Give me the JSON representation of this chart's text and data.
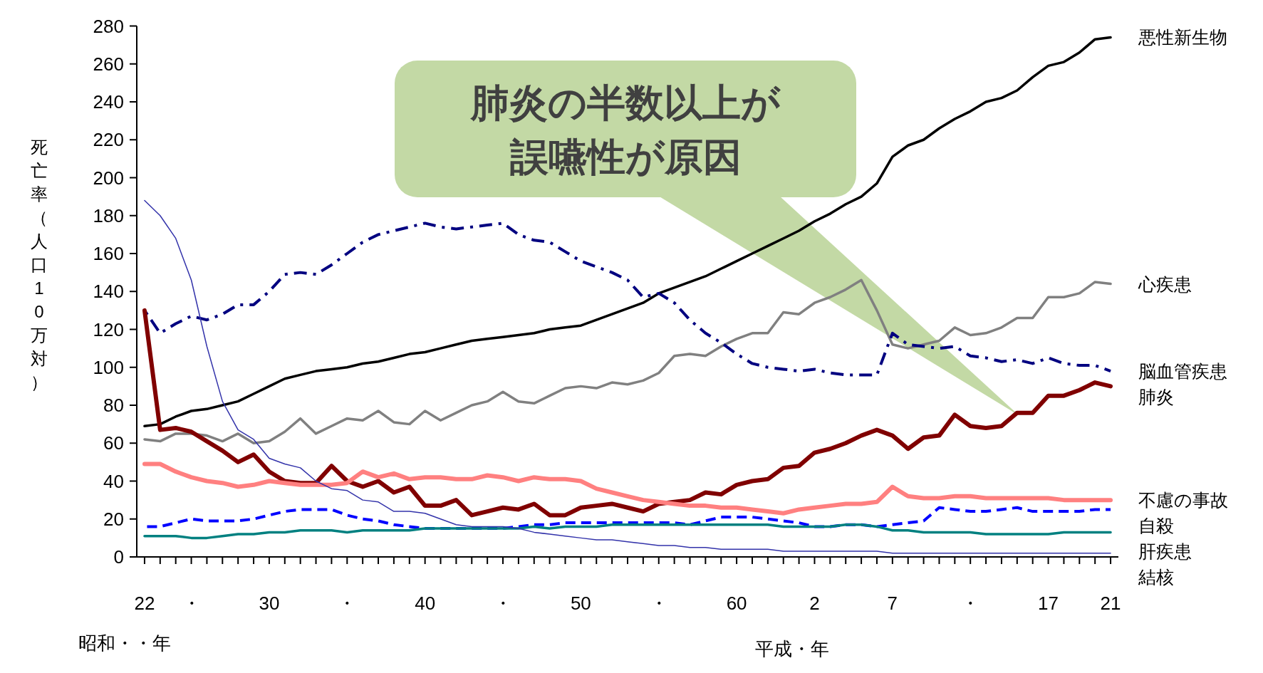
{
  "chart_data": {
    "type": "line",
    "ylabel": "死亡率（人口10万対）",
    "xlabel": "昭和・・年",
    "annotations": [
      "肺炎の半数以上が誤嚥性が原因",
      "平成・年"
    ],
    "ylim": [
      0,
      280
    ],
    "yticks": [
      0,
      20,
      40,
      60,
      80,
      100,
      120,
      140,
      160,
      180,
      200,
      220,
      240,
      260,
      280
    ],
    "categories": [
      "22",
      null,
      null,
      "・",
      null,
      null,
      null,
      null,
      "30",
      null,
      null,
      null,
      null,
      "・",
      null,
      null,
      null,
      null,
      "40",
      null,
      null,
      null,
      null,
      "・",
      null,
      null,
      null,
      null,
      "50",
      null,
      null,
      null,
      null,
      "・",
      null,
      null,
      null,
      null,
      "60",
      null,
      null,
      null,
      null,
      "2",
      null,
      null,
      null,
      null,
      "7",
      null,
      null,
      null,
      null,
      "・",
      null,
      null,
      null,
      null,
      "17",
      null,
      null,
      null,
      "21"
    ],
    "grid": false,
    "legend": false,
    "series": [
      {
        "name": "悪性新生物",
        "color": "#000000",
        "line_style": "solid",
        "values": [
          69,
          70,
          74,
          77,
          78,
          80,
          82,
          86,
          90,
          94,
          96,
          98,
          99,
          100,
          102,
          103,
          105,
          107,
          108,
          110,
          112,
          114,
          115,
          116,
          117,
          118,
          120,
          121,
          122,
          125,
          128,
          131,
          134,
          139,
          142,
          145,
          148,
          152,
          156,
          160,
          164,
          168,
          172,
          177,
          181,
          186,
          190,
          197,
          211,
          217,
          220,
          226,
          231,
          235,
          240,
          242,
          246,
          253,
          259,
          261,
          266,
          273,
          274
        ]
      },
      {
        "name": "心疾患",
        "color": "#808080",
        "line_style": "solid",
        "values": [
          62,
          61,
          65,
          65,
          64,
          61,
          65,
          60,
          61,
          66,
          73,
          65,
          69,
          73,
          72,
          77,
          71,
          70,
          77,
          72,
          76,
          80,
          82,
          87,
          82,
          81,
          85,
          89,
          90,
          89,
          92,
          91,
          93,
          97,
          106,
          107,
          106,
          111,
          115,
          118,
          118,
          129,
          128,
          134,
          137,
          141,
          146,
          130,
          112,
          110,
          112,
          114,
          121,
          117,
          118,
          121,
          126,
          126,
          137,
          137,
          139,
          145,
          144
        ]
      },
      {
        "name": "脳血管疾患",
        "color": "#000080",
        "line_style": "dashdot",
        "values": [
          130,
          118,
          123,
          127,
          125,
          128,
          133,
          133,
          140,
          149,
          150,
          149,
          154,
          160,
          166,
          170,
          172,
          174,
          176,
          174,
          173,
          174,
          175,
          176,
          170,
          167,
          166,
          161,
          156,
          153,
          150,
          146,
          137,
          139,
          134,
          125,
          118,
          113,
          107,
          102,
          100,
          99,
          98,
          99,
          97,
          96,
          96,
          96,
          118,
          112,
          111,
          110,
          111,
          106,
          105,
          103,
          104,
          102,
          105,
          102,
          101,
          101,
          98
        ]
      },
      {
        "name": "肺炎",
        "color": "#800000",
        "line_style": "solid",
        "values": [
          130,
          67,
          68,
          66,
          61,
          56,
          50,
          54,
          45,
          40,
          39,
          39,
          48,
          40,
          37,
          40,
          34,
          37,
          27,
          27,
          30,
          22,
          24,
          26,
          25,
          28,
          22,
          22,
          26,
          27,
          28,
          26,
          24,
          28,
          29,
          30,
          34,
          33,
          38,
          40,
          41,
          47,
          48,
          55,
          57,
          60,
          64,
          67,
          64,
          57,
          63,
          64,
          75,
          69,
          68,
          69,
          76,
          76,
          85,
          85,
          88,
          92,
          90
        ]
      },
      {
        "name": "不慮の事故",
        "color": "#ff8080",
        "line_style": "solid",
        "values": [
          49,
          49,
          45,
          42,
          40,
          39,
          37,
          38,
          40,
          39,
          38,
          38,
          38,
          39,
          45,
          42,
          44,
          41,
          42,
          42,
          41,
          41,
          43,
          42,
          40,
          42,
          41,
          41,
          40,
          36,
          34,
          32,
          30,
          29,
          28,
          27,
          27,
          26,
          26,
          25,
          24,
          23,
          25,
          26,
          27,
          28,
          28,
          29,
          37,
          32,
          31,
          31,
          32,
          32,
          31,
          31,
          31,
          31,
          31,
          30,
          30,
          30,
          30
        ]
      },
      {
        "name": "自殺",
        "color": "#0000ff",
        "line_style": "dashed",
        "values": [
          16,
          16,
          18,
          20,
          19,
          19,
          19,
          20,
          22,
          24,
          25,
          25,
          25,
          22,
          20,
          19,
          17,
          16,
          15,
          15,
          15,
          15,
          15,
          15,
          16,
          17,
          17,
          18,
          18,
          18,
          18,
          18,
          18,
          18,
          18,
          17,
          19,
          21,
          21,
          21,
          20,
          19,
          18,
          16,
          16,
          17,
          17,
          16,
          17,
          18,
          19,
          26,
          25,
          24,
          24,
          25,
          26,
          24,
          24,
          24,
          24,
          25,
          25
        ]
      },
      {
        "name": "肝疾患",
        "color": "#008080",
        "line_style": "solid",
        "values": [
          11,
          11,
          11,
          10,
          10,
          11,
          12,
          12,
          13,
          13,
          14,
          14,
          14,
          13,
          14,
          14,
          14,
          14,
          15,
          15,
          15,
          15,
          15,
          15,
          15,
          16,
          15,
          16,
          16,
          16,
          17,
          17,
          17,
          17,
          17,
          17,
          17,
          17,
          17,
          17,
          17,
          16,
          16,
          16,
          16,
          17,
          17,
          16,
          14,
          14,
          13,
          13,
          13,
          13,
          12,
          12,
          12,
          12,
          12,
          13,
          13,
          13,
          13
        ]
      },
      {
        "name": "結核",
        "color": "#3333aa",
        "line_style": "solid",
        "values": [
          188,
          180,
          168,
          146,
          111,
          82,
          67,
          62,
          52,
          49,
          47,
          40,
          36,
          35,
          30,
          29,
          24,
          24,
          23,
          20,
          17,
          16,
          16,
          16,
          15,
          13,
          12,
          11,
          10,
          9,
          9,
          8,
          7,
          6,
          6,
          5,
          5,
          4,
          4,
          4,
          4,
          3,
          3,
          3,
          3,
          3,
          3,
          3,
          2,
          2,
          2,
          2,
          2,
          2,
          2,
          2,
          2,
          2,
          2,
          2,
          2,
          2,
          2
        ]
      }
    ]
  }
}
